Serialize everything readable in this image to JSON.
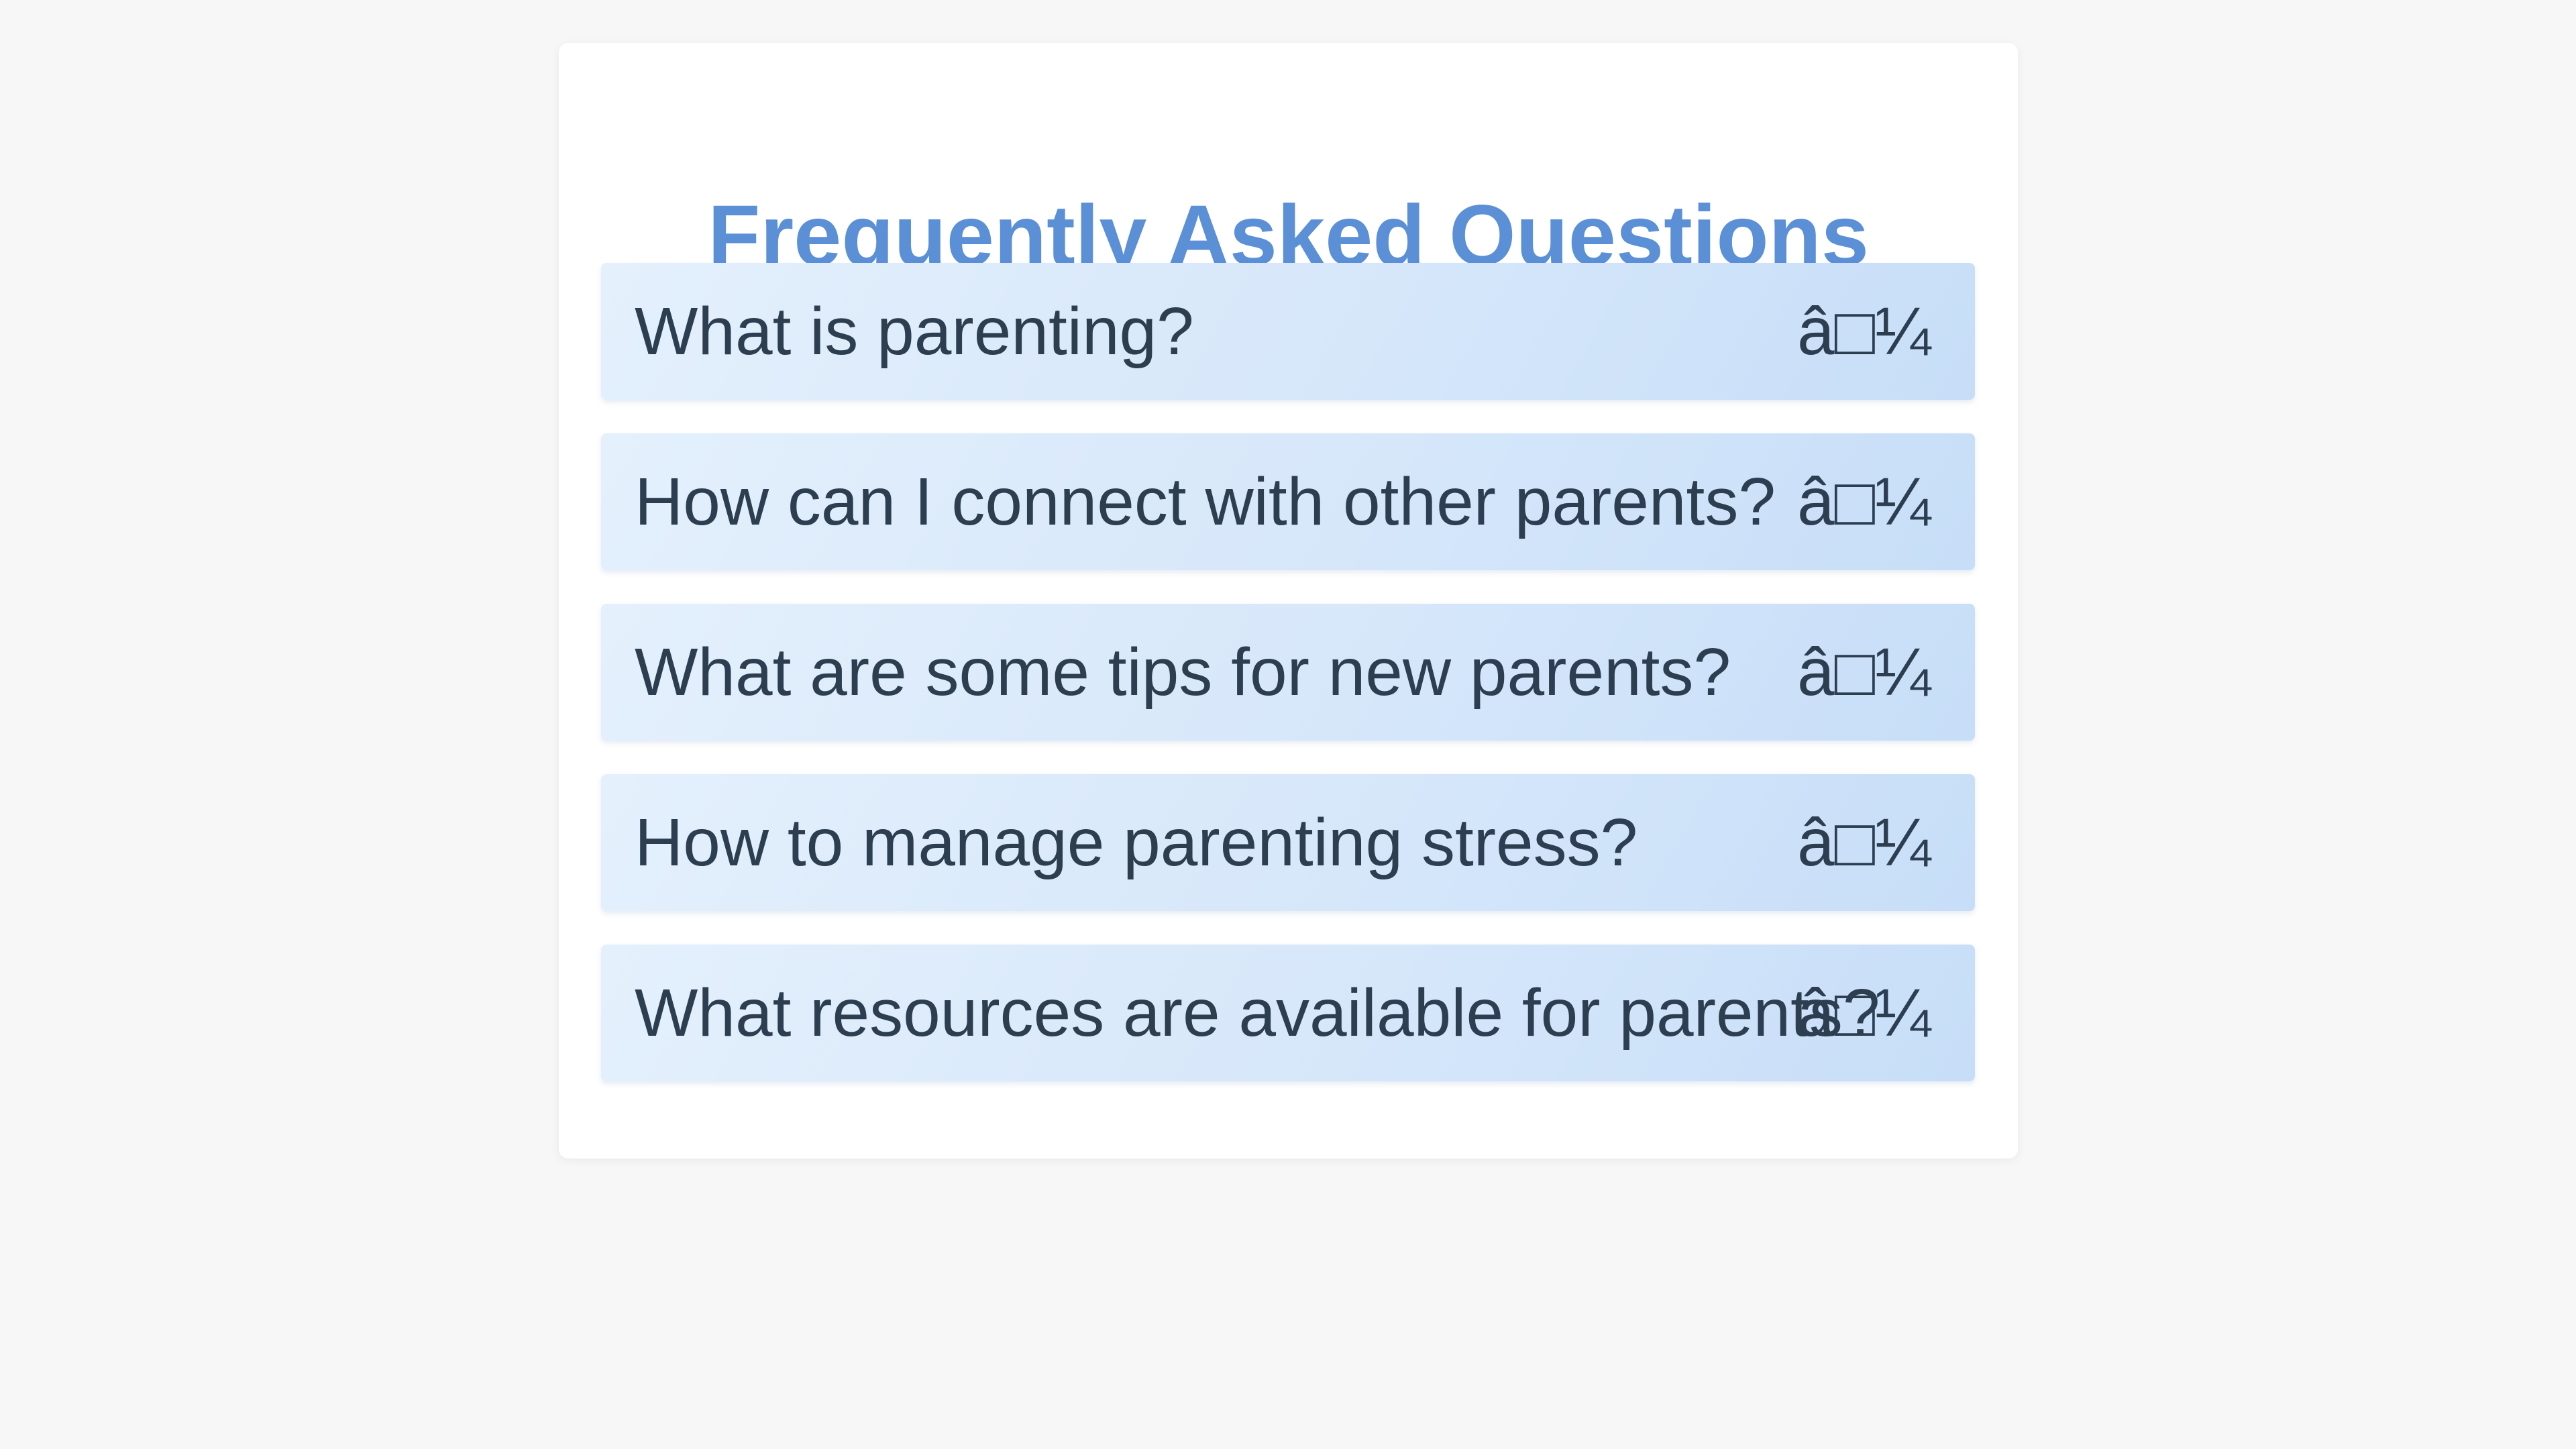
{
  "page": {
    "title": "Frequently Asked Questions"
  },
  "faq": {
    "items": [
      {
        "question": "What is parenting?",
        "toggle": "â□¼"
      },
      {
        "question": "How can I connect with other parents?",
        "toggle": "â□¼"
      },
      {
        "question": "What are some tips for new parents?",
        "toggle": "â□¼"
      },
      {
        "question": "How to manage parenting stress?",
        "toggle": "â□¼"
      },
      {
        "question": "What resources are available for parents?",
        "toggle": "â□¼"
      }
    ]
  },
  "colors": {
    "background": "#f7f7f7",
    "card": "#ffffff",
    "title": "#5b8fd6",
    "question_text": "#2c3e50",
    "item_gradient_start": "#e4f0fc",
    "item_gradient_end": "#c7def8"
  }
}
